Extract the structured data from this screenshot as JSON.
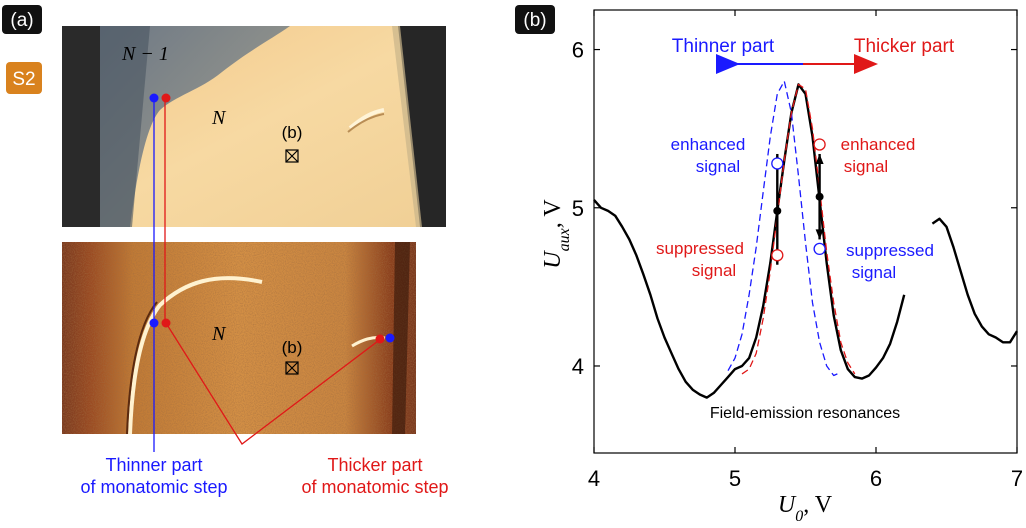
{
  "panel_a": {
    "label": "(a)",
    "sample_badge": "S2",
    "top_image": {
      "label_n_minus_1": "N − 1",
      "label_n": "N",
      "marker_b": "(b)"
    },
    "bottom_image": {
      "label_n": "N",
      "marker_b": "(b)"
    },
    "annotation_thinner": [
      "Thinner part",
      "of monatomic step"
    ],
    "annotation_thicker": [
      "Thicker part",
      "of monatomic step"
    ],
    "colors": {
      "thinner": "#1a1aff",
      "thicker": "#e01818"
    }
  },
  "panel_b": {
    "label": "(b)",
    "arrow_left_label": "Thinner part",
    "arrow_right_label": "Thicker part",
    "left_upper_annotation": [
      "enhanced",
      "signal"
    ],
    "right_upper_annotation": [
      "enhanced",
      "signal"
    ],
    "left_lower_annotation": [
      "suppressed",
      "signal"
    ],
    "right_lower_annotation": [
      "suppressed",
      "signal"
    ],
    "caption": "Field-emission resonances"
  },
  "chart_data": {
    "type": "line",
    "xlabel": "U_0, V",
    "ylabel": "U_aux, V",
    "xlim": [
      4,
      7
    ],
    "ylim": [
      3.45,
      6.25
    ],
    "x_ticks": [
      4,
      5,
      6,
      7
    ],
    "y_ticks": [
      4,
      5,
      6
    ],
    "grid": false,
    "series": [
      {
        "color": "#000000",
        "style": "solid",
        "x": [
          4.0,
          4.05,
          4.1,
          4.15,
          4.2,
          4.25,
          4.3,
          4.35,
          4.4,
          4.45,
          4.5,
          4.55,
          4.6,
          4.65,
          4.7,
          4.75,
          4.8,
          4.85,
          4.9,
          4.95,
          5.0,
          5.05,
          5.1,
          5.15,
          5.2,
          5.25,
          5.3,
          5.35,
          5.4,
          5.45,
          5.5,
          5.55,
          5.6,
          5.65,
          5.7,
          5.75,
          5.8,
          5.85,
          5.9,
          5.95,
          6.0,
          6.05,
          6.1,
          6.15,
          6.2
        ],
        "y": [
          5.05,
          5.0,
          4.98,
          4.95,
          4.88,
          4.8,
          4.7,
          4.58,
          4.45,
          4.3,
          4.18,
          4.08,
          3.98,
          3.9,
          3.85,
          3.82,
          3.8,
          3.83,
          3.88,
          3.93,
          3.98,
          4.0,
          4.05,
          4.18,
          4.38,
          4.65,
          4.98,
          5.3,
          5.6,
          5.78,
          5.72,
          5.45,
          5.05,
          4.65,
          4.32,
          4.1,
          3.98,
          3.93,
          3.92,
          3.94,
          3.99,
          4.05,
          4.14,
          4.28,
          4.45
        ]
      },
      {
        "color": "#000000",
        "style": "solid",
        "x": [
          6.4,
          6.45,
          6.5,
          6.55,
          6.6,
          6.65,
          6.7,
          6.75,
          6.8,
          6.85,
          6.9,
          6.95,
          7.0
        ],
        "y": [
          4.9,
          4.93,
          4.88,
          4.75,
          4.6,
          4.45,
          4.33,
          4.25,
          4.2,
          4.18,
          4.15,
          4.15,
          4.22
        ]
      },
      {
        "color": "#1a1aff",
        "style": "dashed",
        "x": [
          4.95,
          5.0,
          5.05,
          5.1,
          5.15,
          5.2,
          5.25,
          5.3,
          5.35,
          5.4,
          5.45,
          5.5,
          5.55,
          5.6,
          5.65,
          5.7,
          5.75
        ],
        "y": [
          3.97,
          4.05,
          4.2,
          4.45,
          4.75,
          5.1,
          5.45,
          5.72,
          5.8,
          5.6,
          5.2,
          4.78,
          4.4,
          4.15,
          4.0,
          3.94,
          3.96
        ]
      },
      {
        "color": "#e01818",
        "style": "dashed",
        "x": [
          5.05,
          5.1,
          5.15,
          5.2,
          5.25,
          5.3,
          5.35,
          5.4,
          5.45,
          5.5,
          5.55,
          5.6,
          5.65,
          5.7,
          5.75,
          5.8,
          5.85
        ],
        "y": [
          3.95,
          3.98,
          4.08,
          4.3,
          4.6,
          4.95,
          5.3,
          5.6,
          5.78,
          5.75,
          5.5,
          5.12,
          4.72,
          4.4,
          4.15,
          4.02,
          3.95
        ]
      }
    ],
    "open_markers": [
      {
        "x": 5.3,
        "y": 5.28,
        "color": "#1a1aff"
      },
      {
        "x": 5.3,
        "y": 4.7,
        "color": "#e01818"
      },
      {
        "x": 5.6,
        "y": 5.4,
        "color": "#e01818"
      },
      {
        "x": 5.6,
        "y": 4.74,
        "color": "#1a1aff"
      }
    ],
    "filled_markers": [
      {
        "x": 5.3,
        "y": 4.98
      },
      {
        "x": 5.6,
        "y": 5.07
      }
    ]
  }
}
